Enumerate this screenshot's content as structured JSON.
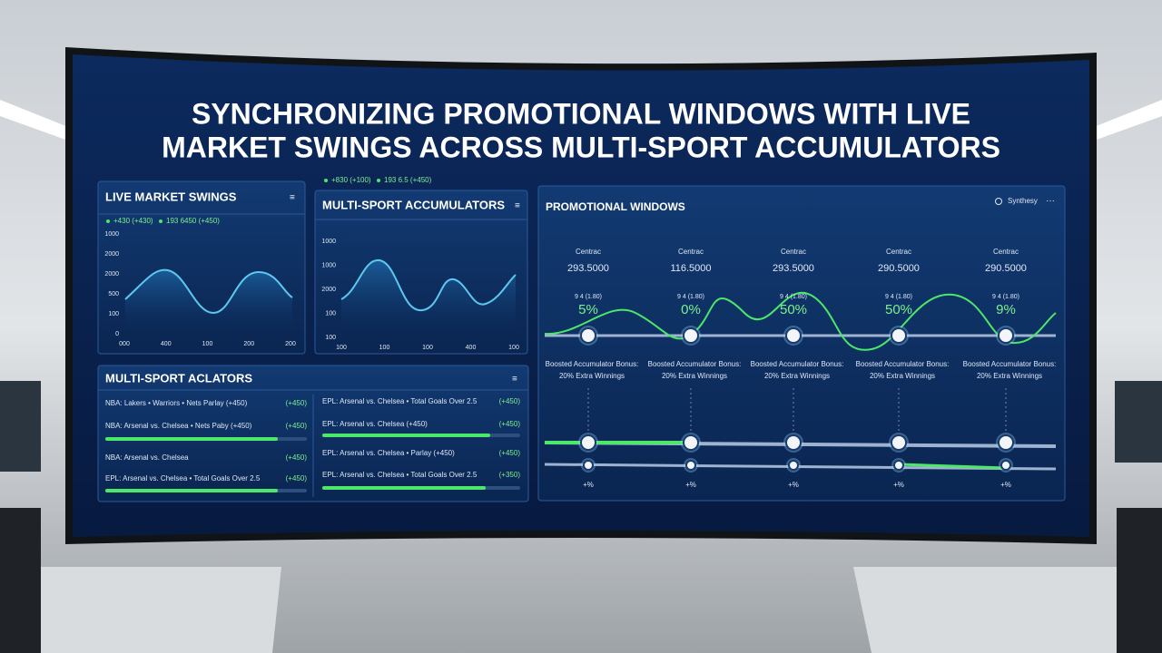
{
  "header": {
    "title_line1": "SYNCHRONIZING PROMOTIONAL WINDOWS WITH LIVE",
    "title_line2": "MARKET SWINGS ACROSS MULTI-SPORT ACCUMULATORS"
  },
  "live_swings": {
    "title": "LIVE MARKET SWINGS",
    "legend": [
      "+430 (+430)",
      "193 6450 (+450)"
    ],
    "y_labels": [
      "1000",
      "2000",
      "2000",
      "500",
      "100",
      "0"
    ],
    "x_labels": [
      "000",
      "400",
      "100",
      "200",
      "200"
    ]
  },
  "accumulators_chart": {
    "title": "MULTI-SPORT ACCUMULATORS",
    "legend": [
      "+830 (+100)",
      "193 6.5 (+450)"
    ],
    "y_labels": [
      "1000",
      "1000",
      "2000",
      "100",
      "100"
    ],
    "x_labels": [
      "100",
      "100",
      "100",
      "400",
      "100"
    ]
  },
  "promo": {
    "title": "PROMOTIONAL WINDOWS",
    "control": "Synthesy",
    "windows": [
      {
        "label": "Centrac",
        "value": "293.5000",
        "odds": "9 4 (1.80)",
        "percent": "5%",
        "bonus_line1": "Boosted Accumulator Bonus:",
        "bonus_line2": "20% Extra Winnings",
        "marker": "+%"
      },
      {
        "label": "Centrac",
        "value": "116.5000",
        "odds": "9 4 (1.80)",
        "percent": "0%",
        "bonus_line1": "Boosted Accumulator Bonus:",
        "bonus_line2": "20% Extra Winnings",
        "marker": "+%"
      },
      {
        "label": "Centrac",
        "value": "293.5000",
        "odds": "9 4 (1.80)",
        "percent": "50%",
        "bonus_line1": "Boosted Accumulator Bonus:",
        "bonus_line2": "20% Extra Winnings",
        "marker": "+%"
      },
      {
        "label": "Centrac",
        "value": "290.5000",
        "odds": "9 4 (1.80)",
        "percent": "50%",
        "bonus_line1": "Boosted Accumulator Bonus:",
        "bonus_line2": "20% Extra Winnings",
        "marker": "+%"
      },
      {
        "label": "Centrac",
        "value": "290.5000",
        "odds": "9 4 (1.80)",
        "percent": "9%",
        "bonus_line1": "Boosted Accumulator Bonus:",
        "bonus_line2": "20% Extra Winnings",
        "marker": "+%"
      }
    ]
  },
  "accumulator_list": {
    "title": "MULTI-SPORT ACLATORS",
    "rows": [
      {
        "name": "NBA: Lakers • Warriors • Nets Parlay (+450)",
        "odds": "(+450)"
      },
      {
        "name": "NBA: Arsenal vs. Chelsea • Nets Paby (+450)",
        "odds": "(+450)"
      },
      {
        "name": "NBA: Arsenal vs. Chelsea",
        "odds": "(+450)"
      },
      {
        "name": "EPL: Arsenal vs. Chelsea • Total Goals Over 2.5",
        "odds": "(+450)"
      },
      {
        "name": "EPL: Arsenal vs. Chelsea • Total Goals Over 2.5",
        "odds": "(+450)"
      },
      {
        "name": "EPL: Arsenal vs. Chelsea (+450)",
        "odds": "(+450)"
      },
      {
        "name": "EPL: Arsenal vs. Chelsea • Parlay (+450)",
        "odds": "(+450)"
      },
      {
        "name": "EPL: Arsenal vs. Chelsea • Total Goals Over 2.5",
        "odds": "(+350)"
      }
    ]
  }
}
